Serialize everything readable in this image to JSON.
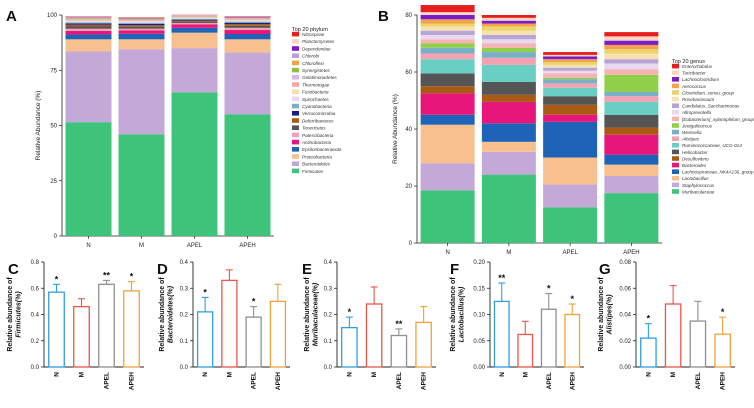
{
  "chart_data": [
    {
      "id": "A",
      "type": "stacked-bar",
      "panel_label": "A",
      "ylabel": "Relative Abundance (%)",
      "ylim": [
        0,
        100
      ],
      "yticks": [
        0,
        25,
        50,
        75,
        100
      ],
      "categories": [
        "N",
        "M",
        "APEL",
        "APEH"
      ],
      "legend_title": "Top 20 phylum",
      "series": [
        {
          "name": "Firmicutes",
          "color": "#3dc47a",
          "values": [
            51.5,
            46,
            65,
            55
          ]
        },
        {
          "name": "Bacteroidetes",
          "color": "#c4a8d8",
          "values": [
            32,
            38.5,
            20,
            28
          ]
        },
        {
          "name": "Proteobacteria",
          "color": "#f8c08e",
          "values": [
            5.5,
            4.5,
            7,
            6
          ]
        },
        {
          "name": "Epsilonbacteraeota",
          "color": "#1f63b8",
          "values": [
            2.2,
            2.5,
            2.2,
            2.4
          ]
        },
        {
          "name": "Actinobacteria",
          "color": "#e8167a",
          "values": [
            1.6,
            1.5,
            1.5,
            1.8
          ]
        },
        {
          "name": "Patescibacteria",
          "color": "#f1a2b6",
          "values": [
            1,
            0.8,
            0.7,
            1
          ]
        },
        {
          "name": "Tenericutes",
          "color": "#555555",
          "values": [
            1,
            0.9,
            0.6,
            0.9
          ]
        },
        {
          "name": "Deferribacteres",
          "color": "#a95b16",
          "values": [
            0.8,
            0.7,
            0.5,
            0.8
          ]
        },
        {
          "name": "Verrucomicrobia",
          "color": "#1a1a8c",
          "values": [
            0.6,
            0.6,
            0.4,
            0.6
          ]
        },
        {
          "name": "Cyanobacteria",
          "color": "#78b0c8",
          "values": [
            0.5,
            0.5,
            0.4,
            0.5
          ]
        },
        {
          "name": "Spirochaetes",
          "color": "#e8d9ee",
          "values": [
            0.4,
            0.4,
            0.3,
            0.4
          ]
        },
        {
          "name": "Fusobacteria",
          "color": "#f7e1b0",
          "values": [
            0.4,
            0.3,
            0.3,
            0.3
          ]
        },
        {
          "name": "Thermotogae",
          "color": "#f5a7a7",
          "values": [
            0.3,
            0.3,
            0.2,
            0.3
          ]
        },
        {
          "name": "Gelatimonadetes",
          "color": "#d3b9ee",
          "values": [
            0.3,
            0.3,
            0.2,
            0.3
          ]
        },
        {
          "name": "Synergistetes",
          "color": "#8fbf4a",
          "values": [
            0.3,
            0.2,
            0.2,
            0.2
          ]
        },
        {
          "name": "Chloroflexi",
          "color": "#f3a24a",
          "values": [
            0.2,
            0.2,
            0.2,
            0.2
          ]
        },
        {
          "name": "Chlorobi",
          "color": "#b2a2d8",
          "values": [
            0.2,
            0.2,
            0.1,
            0.2
          ]
        },
        {
          "name": "Dependentiae",
          "color": "#7a1bcc",
          "values": [
            0.2,
            0.2,
            0.1,
            0.2
          ]
        },
        {
          "name": "Planctomycetes",
          "color": "#f7d6c4",
          "values": [
            0.2,
            0.2,
            0.1,
            0.2
          ]
        },
        {
          "name": "Nitrospirae",
          "color": "#e61e1e",
          "values": [
            0.2,
            0.2,
            0.1,
            0.2
          ]
        }
      ]
    },
    {
      "id": "B",
      "type": "stacked-bar",
      "panel_label": "B",
      "ylabel": "Relative Abundance (%)",
      "ylim": [
        0,
        80
      ],
      "yticks": [
        0,
        20,
        40,
        60,
        80
      ],
      "categories": [
        "N",
        "M",
        "APEL",
        "APEH"
      ],
      "legend_title": "Top 20 genus",
      "series": [
        {
          "name": "Muribaculaceae",
          "color": "#3dc47a",
          "values": [
            18.5,
            24,
            12.5,
            17.5
          ]
        },
        {
          "name": "Staphylococcus",
          "color": "#c4a8d8",
          "values": [
            9.5,
            8,
            8,
            6
          ]
        },
        {
          "name": "Lactobacillus",
          "color": "#f8c08e",
          "values": [
            13.5,
            3.5,
            9.5,
            4
          ]
        },
        {
          "name": "Lachnospiraceae_NK4A136_group",
          "color": "#1f63b8",
          "values": [
            3.5,
            6.5,
            12.5,
            3.5
          ]
        },
        {
          "name": "Bacteroides",
          "color": "#e8167a",
          "values": [
            7.5,
            7.5,
            2.5,
            7
          ]
        },
        {
          "name": "Desulfovibrio",
          "color": "#a95b16",
          "values": [
            2.5,
            2.5,
            3.5,
            2.5
          ]
        },
        {
          "name": "Helicobacter",
          "color": "#555555",
          "values": [
            4.5,
            4.5,
            3,
            4.5
          ]
        },
        {
          "name": "Ruminococcaceae_UCG-014",
          "color": "#69cfc4",
          "values": [
            5,
            6,
            3,
            4.5
          ]
        },
        {
          "name": "Alistipes",
          "color": "#f3a2b2",
          "values": [
            2,
            2.5,
            1.5,
            2
          ]
        },
        {
          "name": "Weissella",
          "color": "#78b0c8",
          "values": [
            2,
            2,
            1.5,
            1.5
          ]
        },
        {
          "name": "Jeotgalicoccus",
          "color": "#8fcf4a",
          "values": [
            1.5,
            1.5,
            0.5,
            6
          ]
        },
        {
          "name": "[Eubacterium]_xylanophilum_group",
          "color": "#f5b3b3",
          "values": [
            1.5,
            1.5,
            1.5,
            2
          ]
        },
        {
          "name": "Allroprevotella",
          "color": "#e8d9ee",
          "values": [
            1.5,
            1.5,
            1,
            2
          ]
        },
        {
          "name": "Candidatus_Saccharimonas",
          "color": "#b7a4d6",
          "values": [
            1.5,
            1.5,
            1,
            1.5
          ]
        },
        {
          "name": "Rosebariasaum",
          "color": "#f7e1b0",
          "values": [
            1.5,
            1.5,
            1,
            2
          ]
        },
        {
          "name": "Clostridium_sensu_group",
          "color": "#ecd36a",
          "values": [
            1,
            1.5,
            1,
            1.5
          ]
        },
        {
          "name": "Aerococcus",
          "color": "#f3a24a",
          "values": [
            1.5,
            1,
            1,
            1.5
          ]
        },
        {
          "name": "Lachnoclostridium",
          "color": "#7a1bcc",
          "values": [
            1.5,
            1,
            1,
            1.5
          ]
        },
        {
          "name": "Turicibacter",
          "color": "#f7d6c4",
          "values": [
            1,
            1,
            0.5,
            1.5
          ]
        },
        {
          "name": "Enterorhabdus",
          "color": "#e61e1e",
          "values": [
            2.5,
            1,
            1,
            1.5
          ]
        }
      ]
    },
    {
      "id": "C",
      "type": "bar",
      "panel_label": "C",
      "ylabel_lines": [
        "Relative abundance of",
        "Firmicutes(%)"
      ],
      "ylim": [
        0,
        0.8
      ],
      "yticks": [
        0.0,
        0.2,
        0.4,
        0.6,
        0.8
      ],
      "tick_decimals": 1,
      "categories": [
        "N",
        "M",
        "APEL",
        "APEH"
      ],
      "values": [
        0.57,
        0.46,
        0.63,
        0.58
      ],
      "errors": [
        0.06,
        0.06,
        0.03,
        0.07
      ],
      "stars": [
        "*",
        "",
        "**",
        "*"
      ],
      "colors": [
        "#2f9fe6",
        "#e8574a",
        "#909090",
        "#f3a23a"
      ]
    },
    {
      "id": "D",
      "type": "bar",
      "panel_label": "D",
      "ylabel_lines": [
        "Relative abundance of",
        "Bacteroidetes(%)"
      ],
      "ylim": [
        0,
        0.4
      ],
      "yticks": [
        0.0,
        0.1,
        0.2,
        0.3,
        0.4
      ],
      "tick_decimals": 1,
      "categories": [
        "N",
        "M",
        "APEL",
        "APEH"
      ],
      "values": [
        0.21,
        0.33,
        0.19,
        0.25
      ],
      "errors": [
        0.055,
        0.04,
        0.04,
        0.065
      ],
      "stars": [
        "*",
        "",
        "*",
        ""
      ],
      "colors": [
        "#2f9fe6",
        "#e8574a",
        "#909090",
        "#f3a23a"
      ]
    },
    {
      "id": "E",
      "type": "bar",
      "panel_label": "E",
      "ylabel_lines": [
        "Relative abundance of",
        "Muribaculaceae(%)"
      ],
      "ylim": [
        0,
        0.4
      ],
      "yticks": [
        0.0,
        0.1,
        0.2,
        0.3,
        0.4
      ],
      "tick_decimals": 1,
      "categories": [
        "N",
        "M",
        "APEL",
        "APEH"
      ],
      "values": [
        0.15,
        0.24,
        0.12,
        0.17
      ],
      "errors": [
        0.04,
        0.065,
        0.025,
        0.06
      ],
      "stars": [
        "*",
        "",
        "**",
        ""
      ],
      "colors": [
        "#2f9fe6",
        "#e8574a",
        "#909090",
        "#f3a23a"
      ]
    },
    {
      "id": "F",
      "type": "bar",
      "panel_label": "F",
      "ylabel_lines": [
        "Relative abundance of",
        "Lactobacillus(%)"
      ],
      "ylim": [
        0,
        0.2
      ],
      "yticks": [
        0.0,
        0.05,
        0.1,
        0.15,
        0.2
      ],
      "tick_decimals": 2,
      "categories": [
        "N",
        "M",
        "APEL",
        "APEH"
      ],
      "values": [
        0.125,
        0.062,
        0.11,
        0.1
      ],
      "errors": [
        0.035,
        0.025,
        0.03,
        0.02
      ],
      "stars": [
        "**",
        "",
        "*",
        "*"
      ],
      "colors": [
        "#2f9fe6",
        "#e8574a",
        "#909090",
        "#f3a23a"
      ]
    },
    {
      "id": "G",
      "type": "bar",
      "panel_label": "G",
      "ylabel_lines": [
        "Relative abundance of",
        "Alistipes(%)"
      ],
      "ylim": [
        0,
        0.08
      ],
      "yticks": [
        0.0,
        0.02,
        0.04,
        0.06,
        0.08
      ],
      "tick_decimals": 2,
      "categories": [
        "N",
        "M",
        "APEL",
        "APEH"
      ],
      "values": [
        0.022,
        0.048,
        0.035,
        0.025
      ],
      "errors": [
        0.011,
        0.014,
        0.015,
        0.013
      ],
      "stars": [
        "*",
        "",
        "",
        "*"
      ],
      "colors": [
        "#2f9fe6",
        "#e8574a",
        "#909090",
        "#f3a23a"
      ]
    }
  ]
}
